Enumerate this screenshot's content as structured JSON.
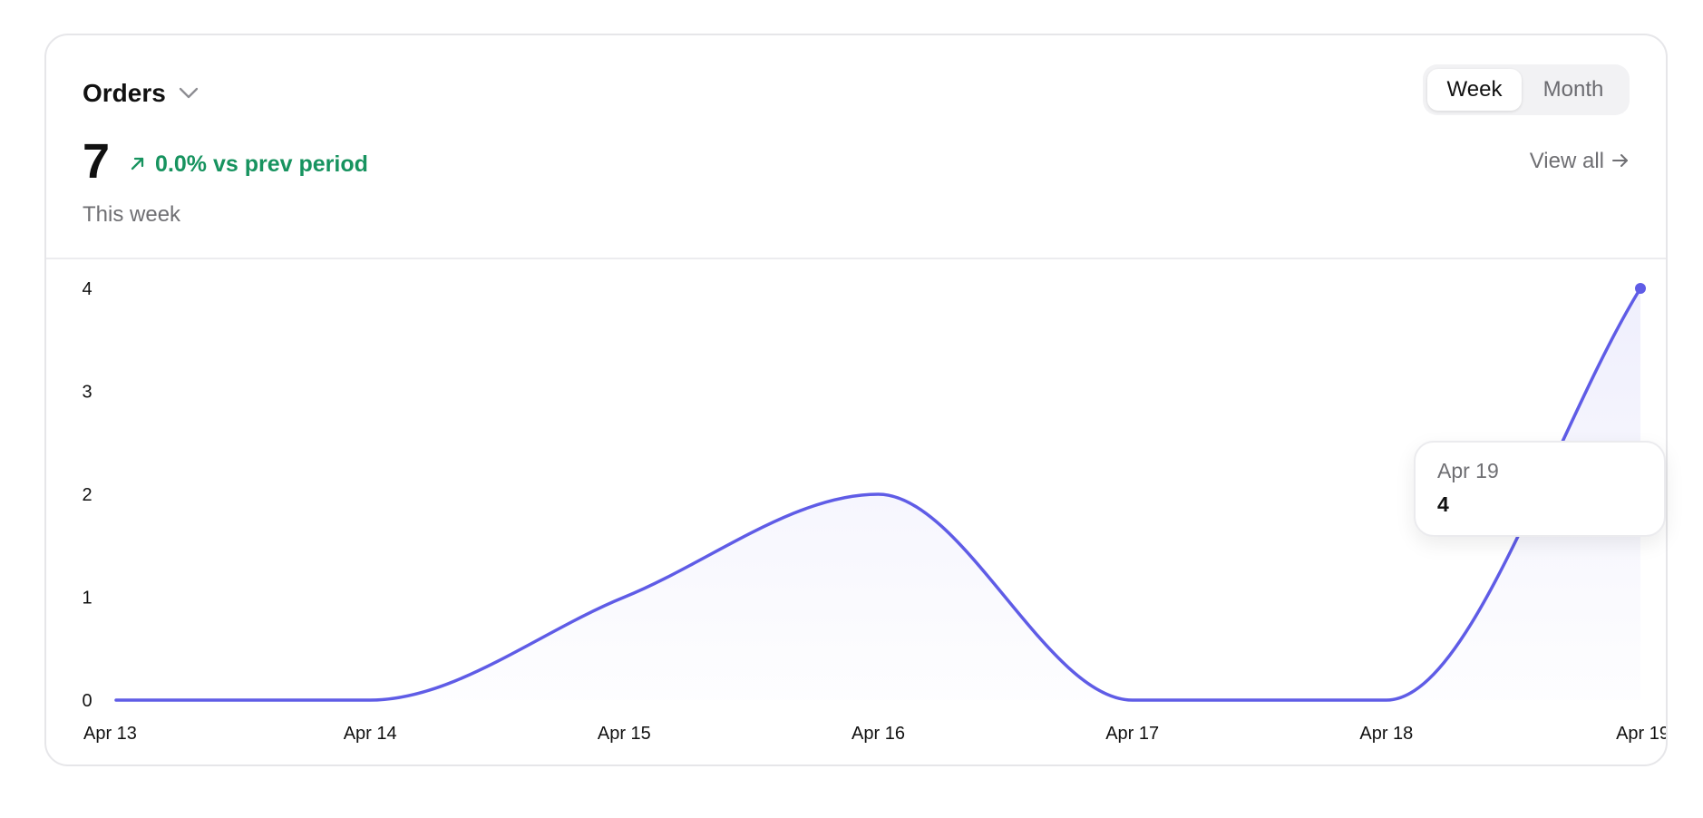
{
  "header": {
    "title": "Orders",
    "period_options": [
      "Week",
      "Month"
    ],
    "selected_period": "Week"
  },
  "metric": {
    "value": "7",
    "delta": "0.0% vs prev period",
    "subtitle": "This week"
  },
  "actions": {
    "view_all": "View all"
  },
  "tooltip": {
    "date": "Apr 19",
    "value": "4"
  },
  "colors": {
    "line": "#5f5ce6",
    "positive": "#17935f",
    "muted": "#6f6f73"
  },
  "icons": {
    "title_chevron": "chevron-down-icon",
    "delta": "arrow-up-right-icon",
    "view_all": "arrow-right-icon"
  },
  "chart_data": {
    "type": "area",
    "x": [
      "Apr 13",
      "Apr 14",
      "Apr 15",
      "Apr 16",
      "Apr 17",
      "Apr 18",
      "Apr 19"
    ],
    "y_ticks": [
      0,
      1,
      2,
      3,
      4
    ],
    "series": [
      {
        "values": [
          0,
          0,
          1,
          2,
          0,
          0,
          4
        ]
      }
    ],
    "ylim": [
      0,
      4
    ],
    "grid": false
  }
}
